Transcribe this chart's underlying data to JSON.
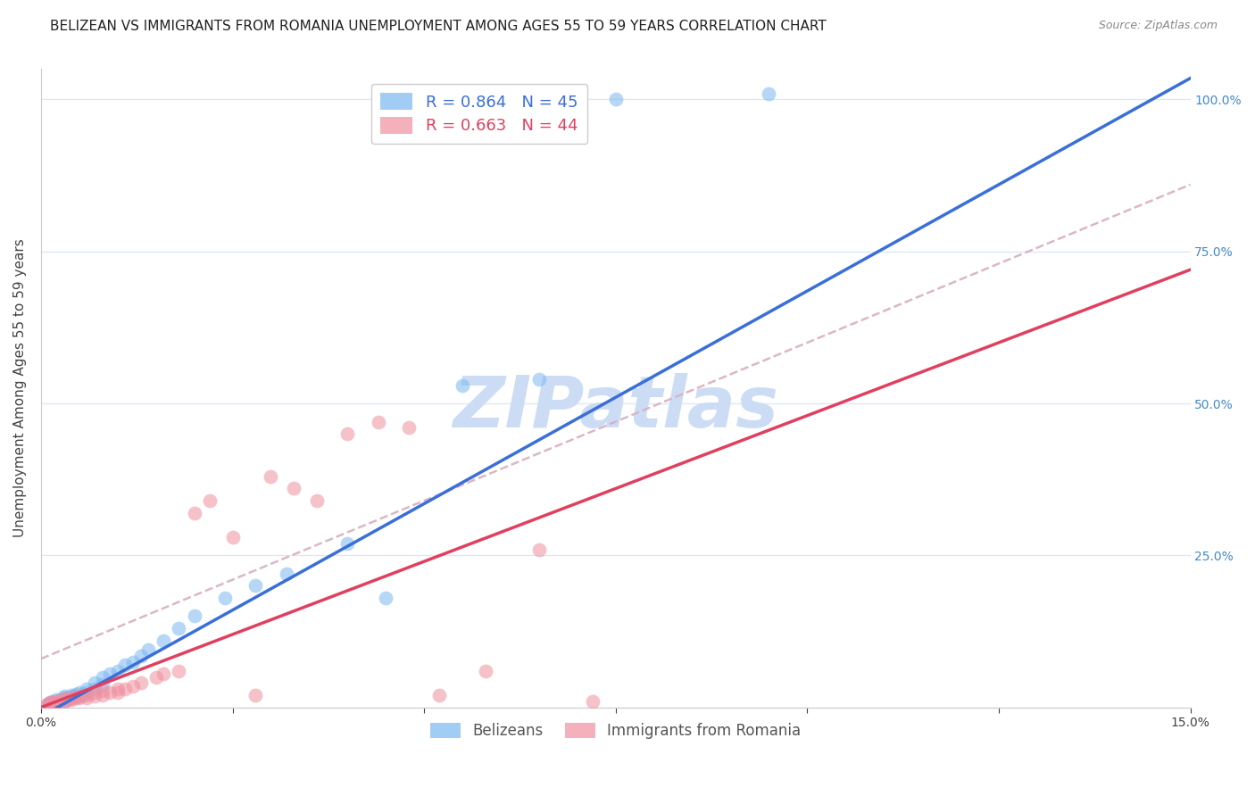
{
  "title": "BELIZEAN VS IMMIGRANTS FROM ROMANIA UNEMPLOYMENT AMONG AGES 55 TO 59 YEARS CORRELATION CHART",
  "source": "Source: ZipAtlas.com",
  "ylabel": "Unemployment Among Ages 55 to 59 years",
  "xlim": [
    0.0,
    0.15
  ],
  "ylim": [
    0.0,
    1.05
  ],
  "xtick_positions": [
    0.0,
    0.025,
    0.05,
    0.075,
    0.1,
    0.125,
    0.15
  ],
  "xtick_labels": [
    "0.0%",
    "",
    "",
    "",
    "",
    "",
    "15.0%"
  ],
  "ytick_positions": [
    0.0,
    0.25,
    0.5,
    0.75,
    1.0
  ],
  "ytick_labels_right": [
    "",
    "25.0%",
    "50.0%",
    "75.0%",
    "100.0%"
  ],
  "blue_color": "#7ab8f0",
  "pink_color": "#f090a0",
  "blue_line_color": "#3a6fd8",
  "pink_line_color": "#e04060",
  "dashed_line_color": "#d8b0c0",
  "watermark": "ZIPatlas",
  "watermark_color": "#ccdcf5",
  "legend_blue_r": "R = 0.864",
  "legend_blue_n": "N = 45",
  "legend_pink_r": "R = 0.663",
  "legend_pink_n": "N = 44",
  "blue_scatter_x": [
    0.0008,
    0.001,
    0.0012,
    0.0015,
    0.0015,
    0.002,
    0.002,
    0.0022,
    0.0025,
    0.003,
    0.003,
    0.003,
    0.0032,
    0.0035,
    0.004,
    0.004,
    0.0042,
    0.0045,
    0.005,
    0.005,
    0.0055,
    0.006,
    0.006,
    0.007,
    0.007,
    0.008,
    0.008,
    0.009,
    0.01,
    0.011,
    0.012,
    0.013,
    0.014,
    0.016,
    0.018,
    0.02,
    0.024,
    0.028,
    0.032,
    0.04,
    0.045,
    0.055,
    0.065,
    0.075,
    0.095
  ],
  "blue_scatter_y": [
    0.005,
    0.005,
    0.008,
    0.008,
    0.01,
    0.008,
    0.012,
    0.01,
    0.012,
    0.01,
    0.015,
    0.018,
    0.012,
    0.015,
    0.015,
    0.02,
    0.018,
    0.022,
    0.018,
    0.025,
    0.022,
    0.025,
    0.03,
    0.03,
    0.04,
    0.038,
    0.05,
    0.055,
    0.06,
    0.07,
    0.075,
    0.085,
    0.095,
    0.11,
    0.13,
    0.15,
    0.18,
    0.2,
    0.22,
    0.27,
    0.18,
    0.53,
    0.54,
    1.0,
    1.01
  ],
  "pink_scatter_x": [
    0.0008,
    0.001,
    0.0012,
    0.0015,
    0.002,
    0.002,
    0.0025,
    0.003,
    0.003,
    0.0035,
    0.004,
    0.004,
    0.0045,
    0.005,
    0.005,
    0.006,
    0.006,
    0.007,
    0.007,
    0.008,
    0.008,
    0.009,
    0.01,
    0.01,
    0.011,
    0.012,
    0.013,
    0.015,
    0.016,
    0.018,
    0.02,
    0.022,
    0.025,
    0.028,
    0.03,
    0.033,
    0.036,
    0.04,
    0.044,
    0.048,
    0.052,
    0.058,
    0.065,
    0.072
  ],
  "pink_scatter_y": [
    0.005,
    0.005,
    0.008,
    0.008,
    0.008,
    0.01,
    0.01,
    0.01,
    0.015,
    0.012,
    0.012,
    0.015,
    0.015,
    0.015,
    0.018,
    0.015,
    0.02,
    0.018,
    0.025,
    0.02,
    0.028,
    0.025,
    0.025,
    0.03,
    0.03,
    0.035,
    0.04,
    0.05,
    0.055,
    0.06,
    0.32,
    0.34,
    0.28,
    0.02,
    0.38,
    0.36,
    0.34,
    0.45,
    0.47,
    0.46,
    0.02,
    0.06,
    0.26,
    0.01
  ],
  "blue_slope": 7.0,
  "blue_intercept": -0.015,
  "pink_slope": 4.8,
  "pink_intercept": 0.0,
  "dash_slope": 5.2,
  "dash_intercept": 0.08,
  "background_color": "#ffffff",
  "grid_color": "#dde8f5",
  "title_fontsize": 11,
  "axis_label_fontsize": 11,
  "tick_fontsize": 10,
  "right_axis_color": "#4488cc"
}
